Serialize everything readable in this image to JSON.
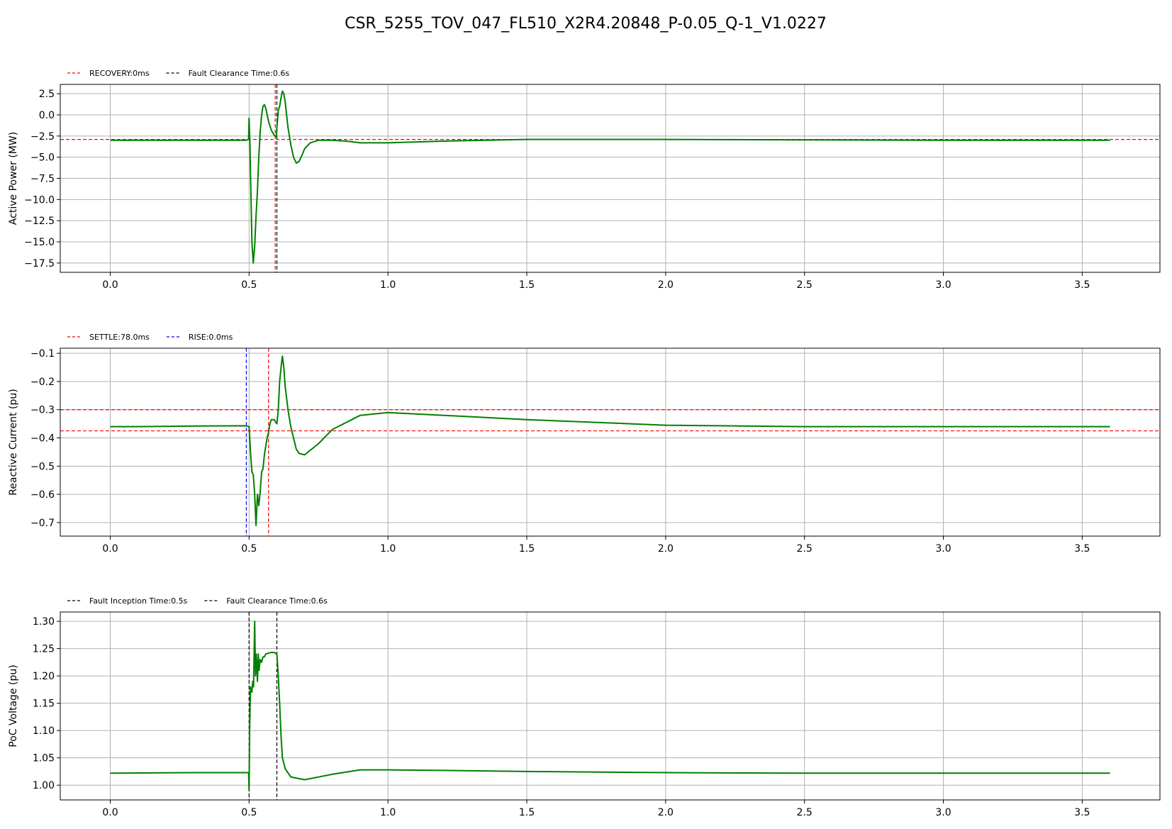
{
  "figure_title": "CSR_5255_TOV_047_FL510_X2R4.20848_P-0.05_Q-1_V1.0227",
  "colors": {
    "signal": "#008000",
    "grid": "#b0b0b0",
    "red": "#ff0000",
    "blue": "#0000ff",
    "black": "#000000"
  },
  "chart_data": [
    {
      "type": "line",
      "ylabel": "Active Power (MW)",
      "xlim": [
        -0.18,
        3.78
      ],
      "ylim": [
        -18.6,
        3.6
      ],
      "xticks": [
        0.0,
        0.5,
        1.0,
        1.5,
        2.0,
        2.5,
        3.0,
        3.5
      ],
      "xtick_labels": [
        "0.0",
        "0.5",
        "1.0",
        "1.5",
        "2.0",
        "2.5",
        "3.0",
        "3.5"
      ],
      "yticks": [
        2.5,
        0.0,
        -2.5,
        -5.0,
        -7.5,
        -10.0,
        -12.5,
        -15.0,
        -17.5
      ],
      "ytick_labels": [
        "2.5",
        "0.0",
        "−2.5",
        "−5.0",
        "−7.5",
        "−10.0",
        "−12.5",
        "−15.0",
        "−17.5"
      ],
      "grid": true,
      "legend": [
        {
          "label": "RECOVERY:0ms",
          "color": "#ff0000",
          "style": "dashed"
        },
        {
          "label": "Fault Clearance Time:0.6s",
          "color": "#000000",
          "style": "dashed"
        }
      ],
      "vlines": [
        {
          "x": 0.594,
          "color": "#ff0000"
        },
        {
          "x": 0.6,
          "color": "#000000"
        }
      ],
      "hlines": [
        {
          "y": -2.9,
          "color": "#ff0000"
        }
      ],
      "series": [
        {
          "color": "#008000",
          "x": [
            0.0,
            0.3,
            0.49,
            0.498,
            0.5,
            0.503,
            0.51,
            0.515,
            0.52,
            0.525,
            0.53,
            0.535,
            0.54,
            0.545,
            0.55,
            0.555,
            0.56,
            0.565,
            0.57,
            0.58,
            0.59,
            0.598,
            0.6,
            0.605,
            0.61,
            0.615,
            0.62,
            0.625,
            0.63,
            0.635,
            0.64,
            0.65,
            0.66,
            0.67,
            0.68,
            0.69,
            0.7,
            0.72,
            0.75,
            0.8,
            0.85,
            0.9,
            1.0,
            1.2,
            1.5,
            2.0,
            2.5,
            3.0,
            3.6
          ],
          "y": [
            -3.0,
            -3.0,
            -3.0,
            -2.9,
            -0.4,
            -3.5,
            -15.0,
            -17.5,
            -15.5,
            -12.0,
            -9.0,
            -5.0,
            -2.0,
            0.0,
            1.0,
            1.2,
            0.8,
            0.0,
            -0.8,
            -1.8,
            -2.4,
            -2.6,
            -1.5,
            0.5,
            1.0,
            2.0,
            2.8,
            2.5,
            1.5,
            0.0,
            -1.5,
            -3.5,
            -5.0,
            -5.7,
            -5.5,
            -4.8,
            -4.0,
            -3.3,
            -3.0,
            -3.0,
            -3.1,
            -3.3,
            -3.3,
            -3.1,
            -2.9,
            -2.9,
            -2.95,
            -3.0,
            -3.0
          ]
        }
      ]
    },
    {
      "type": "line",
      "ylabel": "Reactive Current (pu)",
      "xlim": [
        -0.18,
        3.78
      ],
      "ylim": [
        -0.748,
        -0.082
      ],
      "xticks": [
        0.0,
        0.5,
        1.0,
        1.5,
        2.0,
        2.5,
        3.0,
        3.5
      ],
      "xtick_labels": [
        "0.0",
        "0.5",
        "1.0",
        "1.5",
        "2.0",
        "2.5",
        "3.0",
        "3.5"
      ],
      "yticks": [
        -0.1,
        -0.2,
        -0.3,
        -0.4,
        -0.5,
        -0.6,
        -0.7
      ],
      "ytick_labels": [
        "−0.1",
        "−0.2",
        "−0.3",
        "−0.4",
        "−0.5",
        "−0.6",
        "−0.7"
      ],
      "grid": true,
      "legend": [
        {
          "label": "SETTLE:78.0ms",
          "color": "#ff0000",
          "style": "dashed"
        },
        {
          "label": "RISE:0.0ms",
          "color": "#0000ff",
          "style": "dashed"
        }
      ],
      "vlines": [
        {
          "x": 0.49,
          "color": "#0000ff"
        },
        {
          "x": 0.57,
          "color": "#ff0000"
        }
      ],
      "hlines": [
        {
          "y": -0.3,
          "color": "#ff0000"
        },
        {
          "y": -0.375,
          "color": "#ff0000"
        }
      ],
      "series": [
        {
          "color": "#008000",
          "x": [
            0.0,
            0.1,
            0.3,
            0.49,
            0.5,
            0.505,
            0.51,
            0.515,
            0.52,
            0.525,
            0.53,
            0.535,
            0.54,
            0.545,
            0.55,
            0.555,
            0.56,
            0.565,
            0.57,
            0.575,
            0.58,
            0.59,
            0.6,
            0.605,
            0.61,
            0.615,
            0.62,
            0.625,
            0.63,
            0.64,
            0.65,
            0.66,
            0.67,
            0.68,
            0.7,
            0.75,
            0.8,
            0.9,
            1.0,
            1.5,
            2.0,
            2.5,
            3.0,
            3.6
          ],
          "y": [
            -0.36,
            -0.36,
            -0.358,
            -0.357,
            -0.36,
            -0.45,
            -0.52,
            -0.53,
            -0.6,
            -0.71,
            -0.6,
            -0.64,
            -0.59,
            -0.52,
            -0.51,
            -0.46,
            -0.43,
            -0.4,
            -0.38,
            -0.35,
            -0.335,
            -0.335,
            -0.35,
            -0.3,
            -0.2,
            -0.15,
            -0.11,
            -0.15,
            -0.22,
            -0.3,
            -0.36,
            -0.4,
            -0.44,
            -0.455,
            -0.46,
            -0.42,
            -0.37,
            -0.32,
            -0.31,
            -0.335,
            -0.355,
            -0.36,
            -0.36,
            -0.36
          ]
        }
      ]
    },
    {
      "type": "line",
      "ylabel": "PoC Voltage (pu)",
      "xlim": [
        -0.18,
        3.78
      ],
      "ylim": [
        0.973,
        1.317
      ],
      "xticks": [
        0.0,
        0.5,
        1.0,
        1.5,
        2.0,
        2.5,
        3.0,
        3.5
      ],
      "xtick_labels": [
        "0.0",
        "0.5",
        "1.0",
        "1.5",
        "2.0",
        "2.5",
        "3.0",
        "3.5"
      ],
      "yticks": [
        1.3,
        1.25,
        1.2,
        1.15,
        1.1,
        1.05,
        1.0
      ],
      "ytick_labels": [
        "1.30",
        "1.25",
        "1.20",
        "1.15",
        "1.10",
        "1.05",
        "1.00"
      ],
      "grid": true,
      "legend": [
        {
          "label": "Fault Inception Time:0.5s",
          "color": "#000000",
          "style": "dashed"
        },
        {
          "label": "Fault Clearance Time:0.6s",
          "color": "#000000",
          "style": "dashed"
        }
      ],
      "vlines": [
        {
          "x": 0.5,
          "color": "#000000"
        },
        {
          "x": 0.6,
          "color": "#000000"
        }
      ],
      "hlines": [],
      "series": [
        {
          "color": "#008000",
          "x": [
            0.0,
            0.3,
            0.498,
            0.5,
            0.502,
            0.505,
            0.51,
            0.513,
            0.516,
            0.52,
            0.523,
            0.526,
            0.53,
            0.533,
            0.536,
            0.54,
            0.545,
            0.55,
            0.555,
            0.56,
            0.57,
            0.58,
            0.59,
            0.6,
            0.605,
            0.61,
            0.615,
            0.62,
            0.63,
            0.65,
            0.7,
            0.8,
            0.9,
            1.0,
            1.2,
            1.5,
            2.0,
            2.5,
            3.0,
            3.6
          ],
          "y": [
            1.022,
            1.023,
            1.023,
            0.99,
            1.1,
            1.18,
            1.17,
            1.19,
            1.18,
            1.3,
            1.2,
            1.24,
            1.19,
            1.24,
            1.21,
            1.23,
            1.225,
            1.235,
            1.235,
            1.24,
            1.242,
            1.243,
            1.243,
            1.24,
            1.2,
            1.15,
            1.09,
            1.05,
            1.03,
            1.015,
            1.01,
            1.02,
            1.028,
            1.028,
            1.027,
            1.025,
            1.023,
            1.022,
            1.022,
            1.022
          ]
        }
      ]
    }
  ]
}
